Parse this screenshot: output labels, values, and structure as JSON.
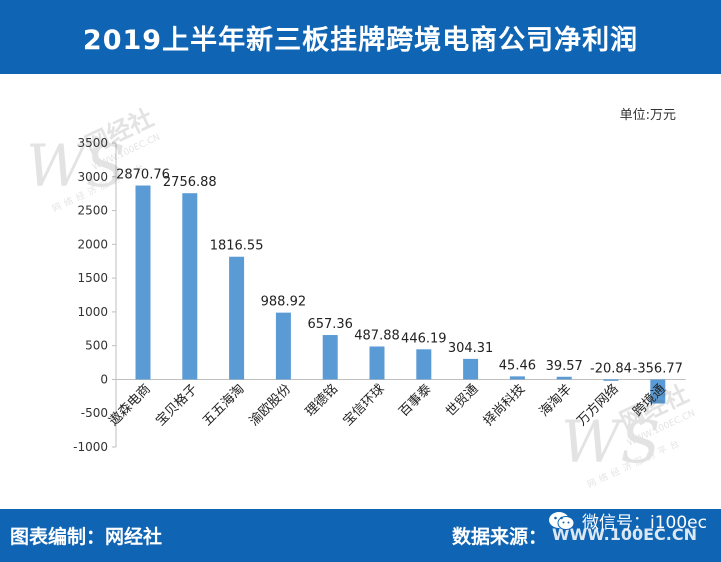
{
  "header": {
    "title": "2019上半年新三板挂牌跨境电商公司净利润"
  },
  "footer": {
    "editor": "图表编制：网经社",
    "source_label": "数据来源：",
    "source_url": "WWW.100EC.CN",
    "wechat": "微信号：i100ec"
  },
  "watermark": {
    "text": "网经社",
    "url": "WWW.100EC.CN",
    "slogan": "网络经济服务平台"
  },
  "colors": {
    "header_bg": "#0f64b3",
    "bar": "#5b9bd5"
  },
  "chart_data": {
    "type": "bar",
    "unit_label": "单位:万元",
    "categories": [
      "遨森电商",
      "宝贝格子",
      "五五海淘",
      "渝欧股份",
      "理德铭",
      "宝信环球",
      "百事泰",
      "世贸通",
      "择尚科技",
      "海淘羊",
      "万方网络",
      "跨境通"
    ],
    "values": [
      2870.76,
      2756.88,
      1816.55,
      988.92,
      657.36,
      487.88,
      446.19,
      304.31,
      45.46,
      39.57,
      -20.84,
      -356.77
    ],
    "value_labels": [
      "2870.76",
      "2756.88",
      "1816.55",
      "988.92",
      "657.36",
      "487.88",
      "446.19",
      "304.31",
      "45.46",
      "39.57",
      "-20.84",
      "-356.77"
    ],
    "yticks": [
      "3500",
      "3000",
      "2500",
      "2000",
      "1500",
      "1000",
      "500",
      "0",
      "-500",
      "-1000"
    ],
    "ylim": [
      -1000,
      3500
    ],
    "grid": false
  }
}
